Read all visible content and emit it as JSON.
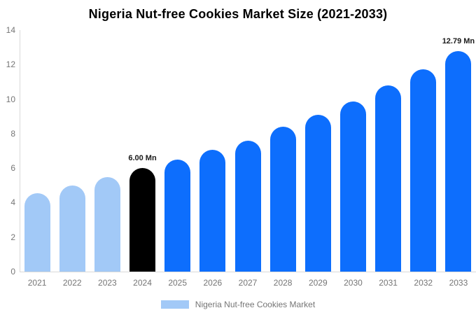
{
  "chart_data": {
    "type": "bar",
    "title": "Nigeria Nut-free Cookies Market Size (2021-2033)",
    "categories": [
      "2021",
      "2022",
      "2023",
      "2024",
      "2025",
      "2026",
      "2027",
      "2028",
      "2029",
      "2030",
      "2031",
      "2032",
      "2033"
    ],
    "values": [
      4.55,
      5.0,
      5.48,
      6.0,
      6.5,
      7.05,
      7.6,
      8.4,
      9.1,
      9.85,
      10.78,
      11.73,
      12.79
    ],
    "bar_colors": [
      "#a2c9f7",
      "#a2c9f7",
      "#a2c9f7",
      "#000000",
      "#0d6efd",
      "#0d6efd",
      "#0d6efd",
      "#0d6efd",
      "#0d6efd",
      "#0d6efd",
      "#0d6efd",
      "#0d6efd",
      "#0d6efd"
    ],
    "data_labels": [
      "",
      "",
      "",
      "6.00 Mn",
      "",
      "",
      "",
      "",
      "",
      "",
      "",
      "",
      "12.79 Mn"
    ],
    "xlabel": "",
    "ylabel": "",
    "ylim": [
      0,
      14
    ],
    "yticks": [
      0,
      2,
      4,
      6,
      8,
      10,
      12,
      14
    ],
    "grid": false,
    "legend": {
      "position": "bottom",
      "entries": [
        {
          "label": "Nigeria Nut-free Cookies Market",
          "swatch_color": "#a2c9f7"
        }
      ]
    }
  },
  "colors": {
    "historical_bar": "#a2c9f7",
    "base_year_bar": "#000000",
    "forecast_bar": "#0d6efd",
    "axis_line": "#d9d9d9",
    "tick_label": "#757575",
    "annotation_text": "#1a1a1a",
    "title_text": "#000000",
    "background": "#ffffff"
  }
}
